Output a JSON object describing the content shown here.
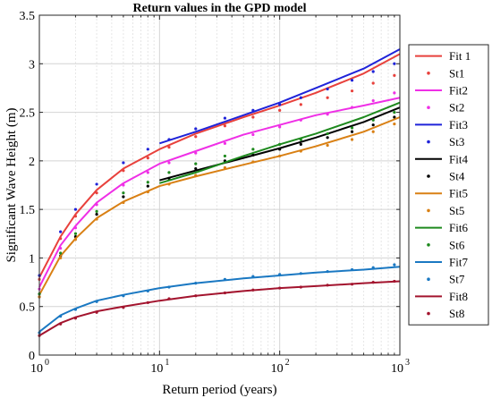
{
  "chart_data": {
    "type": "line",
    "title": "Return values in the GPD model",
    "xlabel": "Return period (years)",
    "ylabel": "Significant Wave Height (m)",
    "x_scale": "log",
    "xlim": [
      1,
      1000
    ],
    "ylim": [
      0,
      3.5
    ],
    "x_ticks": [
      1,
      10,
      100,
      1000
    ],
    "x_tick_labels": [
      "10",
      "10",
      "10",
      "10"
    ],
    "x_tick_exponents": [
      "0",
      "1",
      "2",
      "3"
    ],
    "y_ticks": [
      0,
      0.5,
      1,
      1.5,
      2,
      2.5,
      3,
      3.5
    ],
    "y_tick_labels": [
      "0",
      "0.5",
      "1",
      "1.5",
      "2",
      "2.5",
      "3",
      "3.5"
    ],
    "grid": true,
    "legend_position": "right",
    "series": [
      {
        "name": "Fit 1",
        "kind": "line",
        "color": "#e8413c",
        "x": [
          1,
          1.5,
          2,
          3,
          5,
          10,
          20,
          50,
          100,
          200,
          500,
          1000
        ],
        "y": [
          0.8,
          1.22,
          1.45,
          1.7,
          1.92,
          2.12,
          2.28,
          2.45,
          2.57,
          2.7,
          2.9,
          3.1
        ]
      },
      {
        "name": "St1",
        "kind": "points",
        "color": "#e8413c",
        "x": [
          1,
          1.5,
          2,
          3,
          5,
          8,
          12,
          20,
          35,
          60,
          100,
          150,
          250,
          400,
          600,
          900
        ],
        "y": [
          0.78,
          1.2,
          1.43,
          1.67,
          1.9,
          2.03,
          2.14,
          2.25,
          2.36,
          2.45,
          2.52,
          2.58,
          2.65,
          2.72,
          2.8,
          2.88
        ]
      },
      {
        "name": "Fit2",
        "kind": "line",
        "color": "#ef2fe6",
        "x": [
          1,
          1.5,
          2,
          3,
          5,
          10,
          20,
          50,
          100,
          200,
          500,
          1000
        ],
        "y": [
          0.7,
          1.13,
          1.33,
          1.57,
          1.77,
          1.97,
          2.1,
          2.27,
          2.37,
          2.47,
          2.57,
          2.65
        ]
      },
      {
        "name": "St2",
        "kind": "points",
        "color": "#ef2fe6",
        "x": [
          1,
          1.5,
          2,
          3,
          5,
          8,
          12,
          20,
          35,
          60,
          100,
          150,
          250,
          400,
          600,
          900
        ],
        "y": [
          0.68,
          1.1,
          1.31,
          1.55,
          1.75,
          1.88,
          1.98,
          2.08,
          2.18,
          2.27,
          2.35,
          2.42,
          2.48,
          2.55,
          2.62,
          2.7
        ]
      },
      {
        "name": "Fit3",
        "kind": "line",
        "color": "#1f23d9",
        "x": [
          10,
          20,
          50,
          100,
          200,
          500,
          1000
        ],
        "y": [
          2.18,
          2.3,
          2.47,
          2.6,
          2.75,
          2.95,
          3.15
        ]
      },
      {
        "name": "St3",
        "kind": "points",
        "color": "#1f23d9",
        "x": [
          1,
          1.5,
          2,
          3,
          5,
          8,
          12,
          20,
          35,
          60,
          100,
          150,
          250,
          400,
          600,
          900
        ],
        "y": [
          0.82,
          1.27,
          1.5,
          1.76,
          1.98,
          2.12,
          2.22,
          2.33,
          2.44,
          2.52,
          2.58,
          2.65,
          2.74,
          2.83,
          2.92,
          3.0
        ]
      },
      {
        "name": "Fit4",
        "kind": "line",
        "color": "#000000",
        "x": [
          10,
          20,
          50,
          100,
          200,
          500,
          1000
        ],
        "y": [
          1.8,
          1.9,
          2.03,
          2.13,
          2.24,
          2.4,
          2.55
        ]
      },
      {
        "name": "St4",
        "kind": "points",
        "color": "#000000",
        "x": [
          1,
          1.5,
          2,
          3,
          5,
          8,
          12,
          20,
          35,
          60,
          100,
          150,
          250,
          400,
          600,
          900
        ],
        "y": [
          0.6,
          1.02,
          1.22,
          1.45,
          1.63,
          1.74,
          1.82,
          1.92,
          2.0,
          2.06,
          2.12,
          2.17,
          2.24,
          2.3,
          2.37,
          2.45
        ]
      },
      {
        "name": "Fit5",
        "kind": "line",
        "color": "#d98014",
        "x": [
          1,
          1.5,
          2,
          3,
          5,
          10,
          20,
          50,
          100,
          200,
          500,
          1000
        ],
        "y": [
          0.62,
          1.02,
          1.2,
          1.41,
          1.58,
          1.74,
          1.84,
          1.96,
          2.05,
          2.15,
          2.3,
          2.45
        ]
      },
      {
        "name": "St5",
        "kind": "points",
        "color": "#d98014",
        "x": [
          1,
          1.5,
          2,
          3,
          5,
          8,
          12,
          20,
          35,
          60,
          100,
          150,
          250,
          400,
          600,
          900
        ],
        "y": [
          0.6,
          1.0,
          1.19,
          1.4,
          1.57,
          1.68,
          1.76,
          1.85,
          1.93,
          1.99,
          2.05,
          2.1,
          2.16,
          2.22,
          2.3,
          2.38
        ]
      },
      {
        "name": "Fit6",
        "kind": "line",
        "color": "#1e8a1e",
        "x": [
          10,
          20,
          50,
          100,
          200,
          500,
          1000
        ],
        "y": [
          1.77,
          1.88,
          2.05,
          2.17,
          2.28,
          2.45,
          2.6
        ]
      },
      {
        "name": "St6",
        "kind": "points",
        "color": "#1e8a1e",
        "x": [
          1,
          1.5,
          2,
          3,
          5,
          8,
          12,
          20,
          35,
          60,
          100,
          150,
          250,
          400,
          600,
          900
        ],
        "y": [
          0.63,
          1.05,
          1.25,
          1.48,
          1.67,
          1.78,
          1.88,
          1.97,
          2.05,
          2.12,
          2.17,
          2.22,
          2.28,
          2.34,
          2.42,
          2.5
        ]
      },
      {
        "name": "Fit7",
        "kind": "line",
        "color": "#1a78c2",
        "x": [
          1,
          1.5,
          2,
          3,
          5,
          10,
          20,
          50,
          100,
          200,
          500,
          1000
        ],
        "y": [
          0.24,
          0.41,
          0.48,
          0.56,
          0.62,
          0.69,
          0.74,
          0.79,
          0.82,
          0.85,
          0.88,
          0.91
        ]
      },
      {
        "name": "St7",
        "kind": "points",
        "color": "#1a78c2",
        "x": [
          1,
          1.5,
          2,
          3,
          5,
          8,
          12,
          20,
          35,
          60,
          100,
          150,
          250,
          400,
          600,
          900
        ],
        "y": [
          0.23,
          0.4,
          0.47,
          0.55,
          0.61,
          0.66,
          0.7,
          0.74,
          0.78,
          0.81,
          0.83,
          0.84,
          0.86,
          0.88,
          0.9,
          0.93
        ]
      },
      {
        "name": "Fit8",
        "kind": "line",
        "color": "#a3142e",
        "x": [
          1,
          1.5,
          2,
          3,
          5,
          10,
          20,
          50,
          100,
          200,
          500,
          1000
        ],
        "y": [
          0.2,
          0.33,
          0.39,
          0.45,
          0.5,
          0.56,
          0.61,
          0.66,
          0.69,
          0.71,
          0.74,
          0.76
        ]
      },
      {
        "name": "St8",
        "kind": "points",
        "color": "#a3142e",
        "x": [
          1,
          1.5,
          2,
          3,
          5,
          8,
          12,
          20,
          35,
          60,
          100,
          150,
          250,
          400,
          600,
          900
        ],
        "y": [
          0.2,
          0.32,
          0.38,
          0.44,
          0.49,
          0.54,
          0.58,
          0.61,
          0.64,
          0.67,
          0.69,
          0.7,
          0.72,
          0.73,
          0.75,
          0.76
        ]
      }
    ]
  }
}
